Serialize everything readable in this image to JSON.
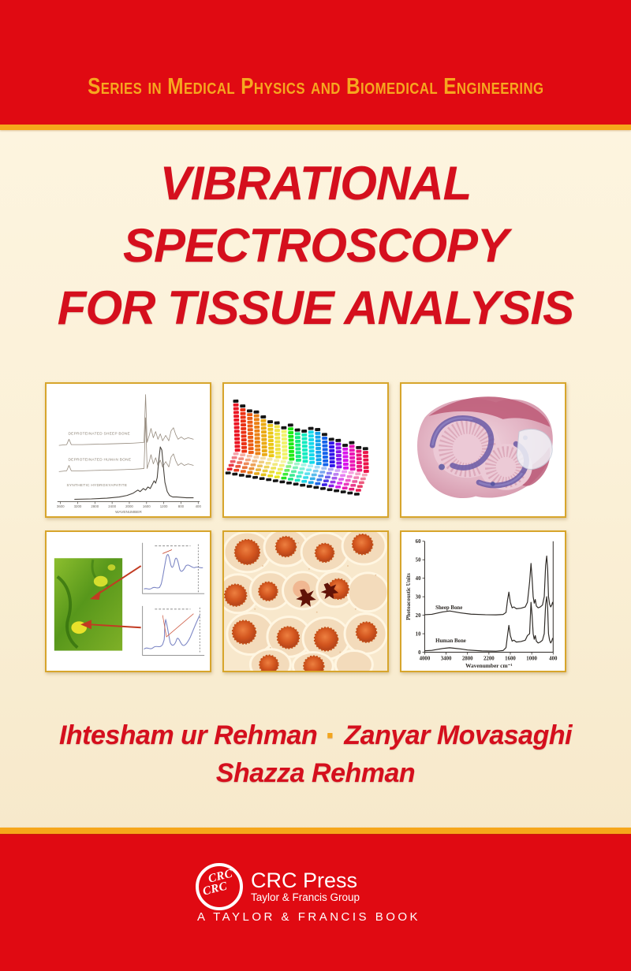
{
  "colors": {
    "band_red": "#e00a12",
    "gold_stripe": "#f6a71b",
    "series_gold": "#f6a71f",
    "title_red": "#d50f1d",
    "panel_border": "#d7a52c",
    "cream": "#fbf1d8"
  },
  "series": {
    "title": "Series in Medical Physics and Biomedical Engineering"
  },
  "title": {
    "line1": "VIBRATIONAL",
    "line2": "SPECTROSCOPY",
    "line3": "FOR TISSUE ANALYSIS"
  },
  "authors": {
    "author1": "Ihtesham ur Rehman",
    "separator": "·",
    "author2": "Zanyar Movasaghi",
    "author3": "Shazza Rehman"
  },
  "publisher": {
    "logo_text": "CRC",
    "name": "CRC Press",
    "group": "Taylor & Francis Group",
    "imprint_line": "A TAYLOR & FRANCIS BOOK"
  },
  "panels": {
    "equalizer": {
      "hues": [
        356,
        8,
        20,
        30,
        42,
        50,
        56,
        60,
        118,
        150,
        168,
        185,
        200,
        218,
        248,
        272,
        295,
        315,
        332,
        345
      ],
      "heights": [
        14,
        13,
        12,
        12,
        11,
        10,
        10,
        9,
        10,
        9,
        9,
        10,
        10,
        9,
        8,
        8,
        7,
        8,
        7,
        7
      ],
      "floor_rows": 6
    }
  },
  "chart_data": [
    {
      "type": "line",
      "panel": "top-left-spectra",
      "xlabel": "WAVENUMBER",
      "x_ticks": [
        "3600",
        "3200",
        "2800",
        "2400",
        "2000",
        "1600",
        "1200",
        "800",
        "400"
      ],
      "series": [
        {
          "name": "DEPROTEINATED SHEEP BONE",
          "color": "#958a7d",
          "points": [
            [
              16,
              80
            ],
            [
              26,
              79
            ],
            [
              29,
              72
            ],
            [
              32,
              79
            ],
            [
              46,
              79
            ],
            [
              62,
              78.5
            ],
            [
              82,
              78
            ],
            [
              100,
              77.5
            ],
            [
              112,
              77
            ],
            [
              120,
              76.5
            ],
            [
              126,
              76
            ],
            [
              128,
              14
            ],
            [
              130,
              76
            ],
            [
              133,
              66
            ],
            [
              135,
              58
            ],
            [
              138,
              70
            ],
            [
              141,
              62
            ],
            [
              144,
              72
            ],
            [
              147,
              65
            ],
            [
              150,
              74
            ],
            [
              154,
              67
            ],
            [
              158,
              74
            ],
            [
              161,
              61
            ],
            [
              164,
              57
            ],
            [
              167,
              66
            ],
            [
              170,
              72
            ],
            [
              174,
              69
            ],
            [
              178,
              72
            ],
            [
              183,
              70
            ],
            [
              190,
              72
            ]
          ]
        },
        {
          "name": "DEPROTEINATED HUMAN BONE",
          "color": "#958a7d",
          "points": [
            [
              16,
              114
            ],
            [
              26,
              113
            ],
            [
              29,
              106
            ],
            [
              32,
              113
            ],
            [
              46,
              113
            ],
            [
              62,
              112.5
            ],
            [
              82,
              112
            ],
            [
              100,
              111.5
            ],
            [
              112,
              111
            ],
            [
              120,
              110.5
            ],
            [
              126,
              110
            ],
            [
              128,
              44
            ],
            [
              130,
              110
            ],
            [
              133,
              100
            ],
            [
              135,
              92
            ],
            [
              138,
              104
            ],
            [
              141,
              96
            ],
            [
              144,
              106
            ],
            [
              147,
              99
            ],
            [
              150,
              108
            ],
            [
              154,
              101
            ],
            [
              158,
              108
            ],
            [
              161,
              95
            ],
            [
              164,
              91
            ],
            [
              167,
              100
            ],
            [
              170,
              106
            ],
            [
              174,
              103
            ],
            [
              178,
              106
            ],
            [
              183,
              104
            ],
            [
              190,
              106
            ]
          ]
        },
        {
          "name": "SYNTHETIC HYDROXYAPATITE",
          "color": "#45403a",
          "points": [
            [
              36,
              150
            ],
            [
              58,
              149.5
            ],
            [
              78,
              148.5
            ],
            [
              94,
              147
            ],
            [
              104,
              145
            ],
            [
              112,
              142
            ],
            [
              118,
              138
            ],
            [
              121,
              140
            ],
            [
              125,
              136
            ],
            [
              128,
              138
            ],
            [
              131,
              134
            ],
            [
              134,
              136
            ],
            [
              137,
              130
            ],
            [
              139,
              126
            ],
            [
              141,
              129
            ],
            [
              143,
              122
            ],
            [
              145,
              100
            ],
            [
              147,
              82
            ],
            [
              149,
              86
            ],
            [
              151,
              108
            ],
            [
              153,
              128
            ],
            [
              156,
              140
            ],
            [
              159,
              145
            ],
            [
              163,
              147
            ],
            [
              168,
              147
            ],
            [
              174,
              147.5
            ],
            [
              181,
              148
            ],
            [
              190,
              148
            ]
          ]
        }
      ]
    },
    {
      "type": "line",
      "panel": "bottom-right-spectra",
      "ylabel": "Photoacoustic Units",
      "xlabel": "Wavenumber cm⁻¹",
      "y_ticks": [
        0,
        10,
        20,
        30,
        40,
        50,
        60
      ],
      "x_ticks": [
        4000,
        3400,
        2800,
        2200,
        1600,
        1000,
        400
      ],
      "xlim": [
        4000,
        400
      ],
      "ylim": [
        0,
        60
      ],
      "series": [
        {
          "name": "Sheep Bone",
          "offset": 20,
          "points": [
            [
              4000,
              20.3
            ],
            [
              3800,
              20.5
            ],
            [
              3500,
              21.8
            ],
            [
              3300,
              22.3
            ],
            [
              3000,
              21.3
            ],
            [
              2700,
              20.6
            ],
            [
              2300,
              20.3
            ],
            [
              2000,
              20.2
            ],
            [
              1800,
              20.4
            ],
            [
              1720,
              21.5
            ],
            [
              1680,
              28
            ],
            [
              1640,
              32.5
            ],
            [
              1600,
              27
            ],
            [
              1550,
              24
            ],
            [
              1500,
              24.5
            ],
            [
              1430,
              23.5
            ],
            [
              1300,
              23.8
            ],
            [
              1180,
              24.5
            ],
            [
              1120,
              27
            ],
            [
              1060,
              38
            ],
            [
              1020,
              48
            ],
            [
              990,
              40
            ],
            [
              960,
              30
            ],
            [
              930,
              26.5
            ],
            [
              900,
              28.5
            ],
            [
              870,
              25
            ],
            [
              820,
              24
            ],
            [
              760,
              24.5
            ],
            [
              700,
              25.5
            ],
            [
              650,
              30
            ],
            [
              610,
              47
            ],
            [
              580,
              52
            ],
            [
              555,
              45
            ],
            [
              530,
              30
            ],
            [
              500,
              26
            ],
            [
              470,
              24.5
            ],
            [
              440,
              25.5
            ],
            [
              415,
              27
            ],
            [
              400,
              26
            ]
          ]
        },
        {
          "name": "Human Bone",
          "offset": 0,
          "points": [
            [
              4000,
              0.8
            ],
            [
              3800,
              1
            ],
            [
              3500,
              2
            ],
            [
              3300,
              2.4
            ],
            [
              3000,
              1.8
            ],
            [
              2800,
              1.2
            ],
            [
              2400,
              0.7
            ],
            [
              2000,
              0.6
            ],
            [
              1800,
              0.9
            ],
            [
              1720,
              2.5
            ],
            [
              1680,
              9
            ],
            [
              1640,
              14.5
            ],
            [
              1600,
              9
            ],
            [
              1550,
              6
            ],
            [
              1500,
              6.5
            ],
            [
              1430,
              5.5
            ],
            [
              1300,
              5.8
            ],
            [
              1180,
              6.5
            ],
            [
              1120,
              9
            ],
            [
              1060,
              10
            ],
            [
              1020,
              27
            ],
            [
              990,
              20
            ],
            [
              960,
              10
            ],
            [
              930,
              7
            ],
            [
              900,
              9
            ],
            [
              870,
              6
            ],
            [
              820,
              5
            ],
            [
              760,
              5.5
            ],
            [
              700,
              6.5
            ],
            [
              650,
              10
            ],
            [
              610,
              26
            ],
            [
              580,
              30
            ],
            [
              555,
              24
            ],
            [
              530,
              10
            ],
            [
              500,
              6.5
            ],
            [
              470,
              5
            ],
            [
              440,
              6
            ],
            [
              415,
              7.5
            ],
            [
              400,
              7
            ]
          ]
        }
      ]
    }
  ]
}
